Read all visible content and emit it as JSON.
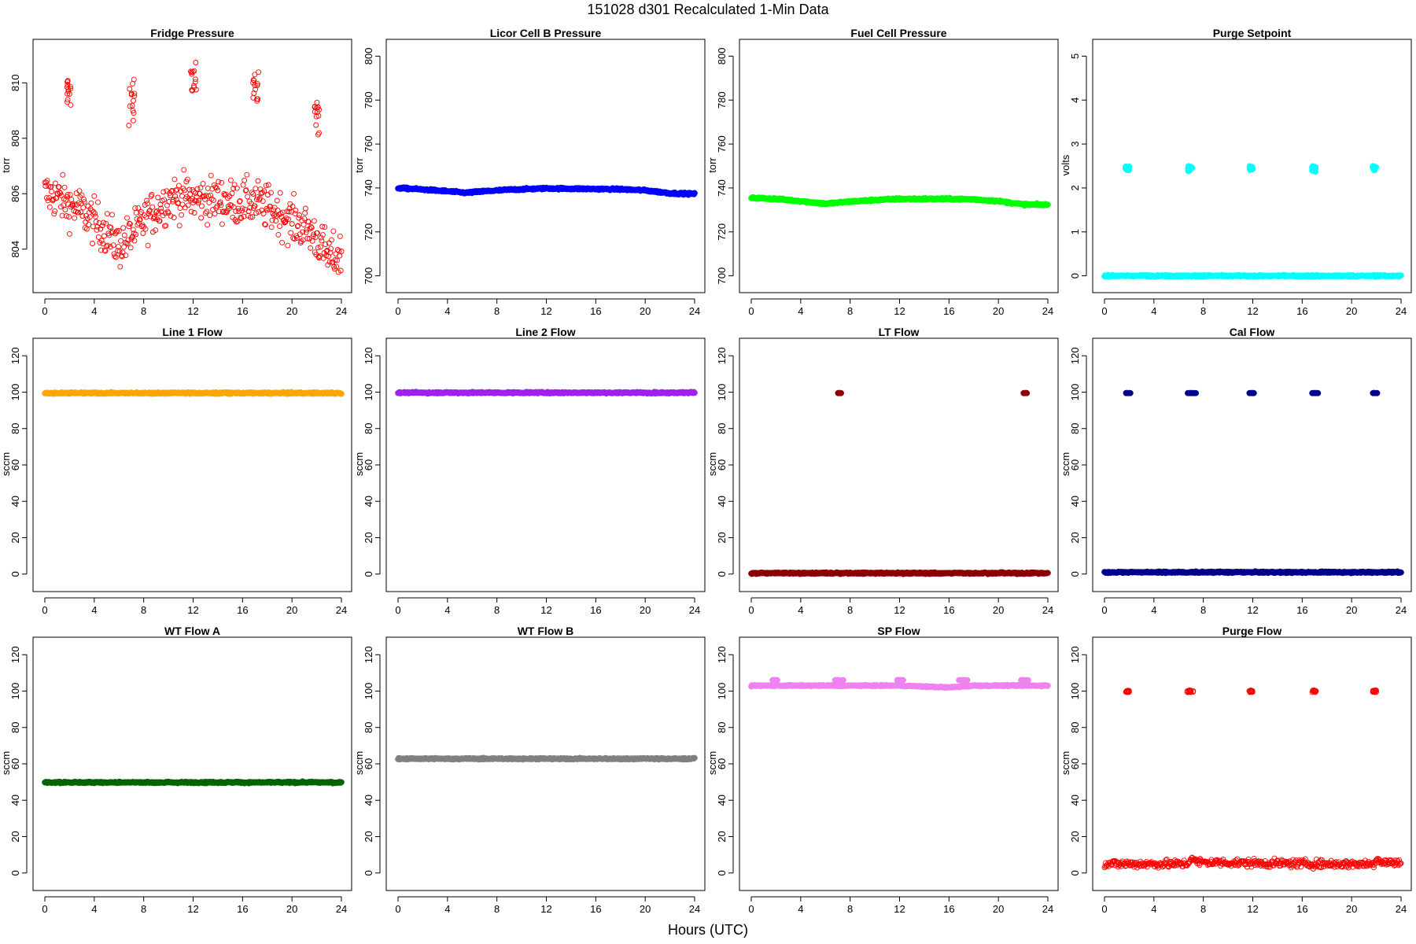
{
  "figure": {
    "title": "151028    d301    Recalculated 1-Min Data",
    "xlabel": "Hours (UTC)"
  },
  "chart_data": [
    {
      "type": "scatter",
      "title": "Fridge Pressure",
      "ylabel": "torr",
      "xlabel": "",
      "xlim": [
        0,
        24
      ],
      "ylim": [
        802.8,
        811.2
      ],
      "xticks": [
        0,
        4,
        8,
        12,
        16,
        20,
        24
      ],
      "yticks": [
        804,
        806,
        808,
        810
      ],
      "color": "#FF0000",
      "marker": "open-circle",
      "grid": false,
      "series": [
        {
          "x": [
            0,
            1,
            2,
            3,
            4,
            5,
            6,
            7,
            8,
            9,
            10,
            11,
            12,
            13,
            14,
            15,
            16,
            17,
            18,
            19,
            20,
            21,
            22,
            23,
            24
          ],
          "y": [
            806.0,
            805.9,
            805.6,
            805.4,
            805.0,
            804.6,
            804.1,
            804.5,
            805.0,
            805.4,
            805.8,
            805.9,
            805.8,
            805.8,
            805.8,
            805.7,
            805.7,
            805.7,
            805.5,
            805.3,
            805.0,
            804.8,
            804.4,
            803.7,
            803.8
          ],
          "spread": 0.8
        }
      ],
      "spikes": [
        {
          "x": [
            1.8,
            2.1
          ],
          "y": [
            809.1,
            810.2
          ]
        },
        {
          "x": [
            6.8,
            7.3
          ],
          "y": [
            808.2,
            810.2
          ]
        },
        {
          "x": [
            11.8,
            12.3
          ],
          "y": [
            809.6,
            810.9
          ]
        },
        {
          "x": [
            16.8,
            17.3
          ],
          "y": [
            809.3,
            810.6
          ]
        },
        {
          "x": [
            21.8,
            22.2
          ],
          "y": [
            808.1,
            809.3
          ]
        }
      ]
    },
    {
      "type": "scatter",
      "title": "Licor Cell B Pressure",
      "ylabel": "torr",
      "xlabel": "",
      "xlim": [
        0,
        24
      ],
      "ylim": [
        697,
        803
      ],
      "xticks": [
        0,
        4,
        8,
        12,
        16,
        20,
        24
      ],
      "yticks": [
        700,
        720,
        740,
        760,
        780,
        800
      ],
      "color": "#0000FF",
      "marker": "filled-circle",
      "grid": false,
      "series": [
        {
          "x": [
            0,
            2,
            4,
            5.5,
            7,
            9,
            12,
            15,
            18,
            20,
            22,
            24
          ],
          "y": [
            740.0,
            739.3,
            738.5,
            737.8,
            738.5,
            739.2,
            739.8,
            739.6,
            739.4,
            738.9,
            737.6,
            737.3
          ],
          "spread": 0.4
        }
      ],
      "spikes": []
    },
    {
      "type": "scatter",
      "title": "Fuel Cell Pressure",
      "ylabel": "torr",
      "xlabel": "",
      "xlim": [
        0,
        24
      ],
      "ylim": [
        697,
        803
      ],
      "xticks": [
        0,
        4,
        8,
        12,
        16,
        20,
        24
      ],
      "yticks": [
        700,
        720,
        740,
        760,
        780,
        800
      ],
      "color": "#00FF00",
      "marker": "filled-circle",
      "grid": false,
      "series": [
        {
          "x": [
            0,
            2,
            4,
            6,
            8,
            10,
            12,
            16,
            18,
            20,
            22,
            24
          ],
          "y": [
            735.5,
            735.0,
            734.0,
            732.8,
            733.8,
            734.5,
            735.0,
            735.0,
            734.8,
            734.0,
            732.5,
            732.3
          ],
          "spread": 0.4
        }
      ],
      "spikes": []
    },
    {
      "type": "scatter",
      "title": "Purge Setpoint",
      "ylabel": "volts",
      "xlabel": "",
      "xlim": [
        0,
        24
      ],
      "ylim": [
        -0.15,
        5.15
      ],
      "xticks": [
        0,
        4,
        8,
        12,
        16,
        20,
        24
      ],
      "yticks": [
        0,
        1,
        2,
        3,
        4,
        5
      ],
      "color": "#00FFFF",
      "marker": "filled-circle",
      "grid": false,
      "series": [
        {
          "x": [
            0,
            24
          ],
          "y": [
            0,
            0
          ],
          "spread": 0.0
        }
      ],
      "spikes": [
        {
          "x": [
            1.7,
            2.0
          ],
          "y": [
            2.4,
            2.5
          ]
        },
        {
          "x": [
            6.7,
            7.1
          ],
          "y": [
            2.35,
            2.5
          ]
        },
        {
          "x": [
            11.7,
            12.0
          ],
          "y": [
            2.4,
            2.5
          ]
        },
        {
          "x": [
            16.8,
            17.1
          ],
          "y": [
            2.35,
            2.5
          ]
        },
        {
          "x": [
            21.7,
            22.0
          ],
          "y": [
            2.4,
            2.5
          ]
        }
      ]
    },
    {
      "type": "scatter",
      "title": "Line 1 Flow",
      "ylabel": "sccm",
      "xlabel": "",
      "xlim": [
        0,
        24
      ],
      "ylim": [
        -4,
        124
      ],
      "xticks": [
        0,
        4,
        8,
        12,
        16,
        20,
        24
      ],
      "yticks": [
        0,
        20,
        40,
        60,
        80,
        100,
        120
      ],
      "color": "#FFA500",
      "marker": "filled-circle",
      "grid": false,
      "series": [
        {
          "x": [
            0,
            24
          ],
          "y": [
            99.5,
            99.5
          ],
          "spread": 0.0
        }
      ],
      "spikes": []
    },
    {
      "type": "scatter",
      "title": "Line 2 Flow",
      "ylabel": "sccm",
      "xlabel": "",
      "xlim": [
        0,
        24
      ],
      "ylim": [
        -4,
        124
      ],
      "xticks": [
        0,
        4,
        8,
        12,
        16,
        20,
        24
      ],
      "yticks": [
        0,
        20,
        40,
        60,
        80,
        100,
        120
      ],
      "color": "#A020F0",
      "marker": "filled-circle",
      "grid": false,
      "series": [
        {
          "x": [
            0,
            24
          ],
          "y": [
            99.7,
            99.7
          ],
          "spread": 0.0
        }
      ],
      "spikes": []
    },
    {
      "type": "scatter",
      "title": "LT Flow",
      "ylabel": "sccm",
      "xlabel": "",
      "xlim": [
        0,
        24
      ],
      "ylim": [
        -4,
        124
      ],
      "xticks": [
        0,
        4,
        8,
        12,
        16,
        20,
        24
      ],
      "yticks": [
        0,
        20,
        40,
        60,
        80,
        100,
        120
      ],
      "color": "#8B0000",
      "marker": "filled-circle",
      "grid": false,
      "series": [
        {
          "x": [
            0,
            24
          ],
          "y": [
            0.5,
            0.5
          ],
          "spread": 0.0
        }
      ],
      "spikes": [
        {
          "x": [
            7.0,
            7.3
          ],
          "y": [
            99.5,
            99.5
          ]
        },
        {
          "x": [
            22.0,
            22.3
          ],
          "y": [
            99.5,
            99.5
          ]
        }
      ]
    },
    {
      "type": "scatter",
      "title": "Cal Flow",
      "ylabel": "sccm",
      "xlabel": "",
      "xlim": [
        0,
        24
      ],
      "ylim": [
        -4,
        124
      ],
      "xticks": [
        0,
        4,
        8,
        12,
        16,
        20,
        24
      ],
      "yticks": [
        0,
        20,
        40,
        60,
        80,
        100,
        120
      ],
      "color": "#00008B",
      "marker": "filled-circle",
      "grid": false,
      "series": [
        {
          "x": [
            0,
            24
          ],
          "y": [
            1.0,
            1.0
          ],
          "spread": 0.0
        }
      ],
      "spikes": [
        {
          "x": [
            1.7,
            2.1
          ],
          "y": [
            99.5,
            99.5
          ]
        },
        {
          "x": [
            6.7,
            7.4
          ],
          "y": [
            99.5,
            99.5
          ]
        },
        {
          "x": [
            11.7,
            12.1
          ],
          "y": [
            99.5,
            99.5
          ]
        },
        {
          "x": [
            16.7,
            17.3
          ],
          "y": [
            99.5,
            99.5
          ]
        },
        {
          "x": [
            21.7,
            22.1
          ],
          "y": [
            99.5,
            99.5
          ]
        }
      ]
    },
    {
      "type": "scatter",
      "title": "WT Flow A",
      "ylabel": "sccm",
      "xlabel": "",
      "xlim": [
        0,
        24
      ],
      "ylim": [
        -4,
        124
      ],
      "xticks": [
        0,
        4,
        8,
        12,
        16,
        20,
        24
      ],
      "yticks": [
        0,
        20,
        40,
        60,
        80,
        100,
        120
      ],
      "color": "#006400",
      "marker": "filled-circle",
      "grid": false,
      "series": [
        {
          "x": [
            0,
            24
          ],
          "y": [
            49.8,
            49.8
          ],
          "spread": 0.0
        }
      ],
      "spikes": []
    },
    {
      "type": "scatter",
      "title": "WT Flow B",
      "ylabel": "sccm",
      "xlabel": "",
      "xlim": [
        0,
        24
      ],
      "ylim": [
        -4,
        124
      ],
      "xticks": [
        0,
        4,
        8,
        12,
        16,
        20,
        24
      ],
      "yticks": [
        0,
        20,
        40,
        60,
        80,
        100,
        120
      ],
      "color": "#808080",
      "marker": "filled-circle",
      "grid": false,
      "series": [
        {
          "x": [
            0,
            24
          ],
          "y": [
            62.8,
            62.8
          ],
          "spread": 0.0
        }
      ],
      "spikes": []
    },
    {
      "type": "scatter",
      "title": "SP Flow",
      "ylabel": "sccm",
      "xlabel": "",
      "xlim": [
        0,
        24
      ],
      "ylim": [
        -4,
        124
      ],
      "xticks": [
        0,
        4,
        8,
        12,
        16,
        20,
        24
      ],
      "yticks": [
        0,
        20,
        40,
        60,
        80,
        100,
        120
      ],
      "color": "#EE82EE",
      "marker": "filled-circle",
      "grid": false,
      "series": [
        {
          "x": [
            0,
            6,
            8,
            12,
            14,
            16,
            18,
            22,
            24
          ],
          "y": [
            103,
            103,
            103,
            103,
            102.5,
            102,
            103,
            103,
            103
          ],
          "spread": 0.3
        }
      ],
      "spikes": [
        {
          "x": [
            1.7,
            2.2
          ],
          "y": [
            106,
            106
          ]
        },
        {
          "x": [
            6.7,
            7.5
          ],
          "y": [
            106,
            106
          ]
        },
        {
          "x": [
            11.8,
            12.3
          ],
          "y": [
            106,
            106
          ]
        },
        {
          "x": [
            16.8,
            17.5
          ],
          "y": [
            106,
            106
          ]
        },
        {
          "x": [
            21.8,
            22.5
          ],
          "y": [
            106,
            106
          ]
        }
      ]
    },
    {
      "type": "scatter",
      "title": "Purge Flow",
      "ylabel": "sccm",
      "xlabel": "",
      "xlim": [
        0,
        24
      ],
      "ylim": [
        -4,
        124
      ],
      "xticks": [
        0,
        4,
        8,
        12,
        16,
        20,
        24
      ],
      "yticks": [
        0,
        20,
        40,
        60,
        80,
        100,
        120
      ],
      "color": "#FF0000",
      "marker": "open-circle",
      "grid": false,
      "series": [
        {
          "x": [
            0,
            6.8,
            7.0,
            7.4,
            12,
            18,
            21.8,
            22.0,
            22.5,
            24
          ],
          "y": [
            5,
            5,
            9,
            6,
            5.5,
            5,
            5,
            8,
            6,
            5.5
          ],
          "spread": 2.2
        }
      ],
      "spikes": [
        {
          "x": [
            1.7,
            2.0
          ],
          "y": [
            99.3,
            100.5
          ]
        },
        {
          "x": [
            6.7,
            7.2
          ],
          "y": [
            99.3,
            100.5
          ]
        },
        {
          "x": [
            11.7,
            12.0
          ],
          "y": [
            99.3,
            100.5
          ]
        },
        {
          "x": [
            16.8,
            17.2
          ],
          "y": [
            99.3,
            100.5
          ]
        },
        {
          "x": [
            21.7,
            22.0
          ],
          "y": [
            99.3,
            100.5
          ]
        }
      ]
    }
  ]
}
